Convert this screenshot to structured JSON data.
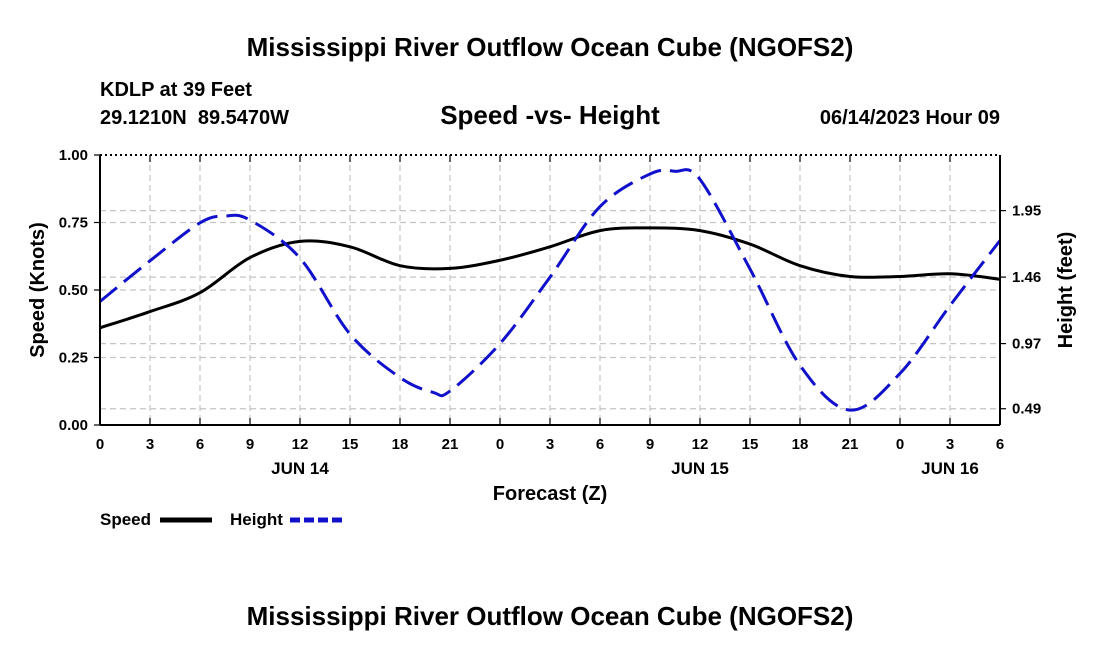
{
  "chart_data": {
    "type": "line",
    "title": "Mississippi River Outflow Ocean Cube (NGOFS2)",
    "subtitle": "Speed -vs- Height",
    "station": "KDLP at 39 Feet",
    "location": "29.1210N  89.5470W",
    "datetime": "06/14/2023 Hour 09",
    "xlabel": "Forecast (Z)",
    "ylabel_left": "Speed (Knots)",
    "ylabel_right": "Height (feet)",
    "x_range": [
      0,
      54
    ],
    "x_ticks": [
      0,
      3,
      6,
      9,
      12,
      15,
      18,
      21,
      24,
      27,
      30,
      33,
      36,
      39,
      42,
      45,
      48,
      51,
      54
    ],
    "x_tick_labels": [
      "0",
      "3",
      "6",
      "9",
      "12",
      "15",
      "18",
      "21",
      "0",
      "3",
      "6",
      "9",
      "12",
      "15",
      "18",
      "21",
      "0",
      "3",
      "6"
    ],
    "date_labels": [
      {
        "x": 12,
        "label": "JUN 14"
      },
      {
        "x": 36,
        "label": "JUN 15"
      },
      {
        "x": 51,
        "label": "JUN 16"
      }
    ],
    "y_left_range": [
      0,
      1.0
    ],
    "y_left_ticks": [
      0,
      0.25,
      0.5,
      0.75,
      1.0
    ],
    "y_left_tick_labels": [
      "0.00",
      "0.25",
      "0.50",
      "0.75",
      "1.00"
    ],
    "y_right_range": [
      0.37,
      2.36
    ],
    "y_right_ticks": [
      0.49,
      0.97,
      1.46,
      1.95
    ],
    "y_right_tick_labels": [
      "0.49",
      "0.97",
      "1.46",
      "1.95"
    ],
    "grid": true,
    "legend_position": "bottom-left",
    "series": [
      {
        "name": "Speed",
        "axis": "left",
        "color": "#000000",
        "style": "solid",
        "x": [
          0,
          3,
          6,
          9,
          12,
          15,
          18,
          21,
          24,
          27,
          30,
          33,
          36,
          39,
          42,
          45,
          48,
          51,
          54
        ],
        "values": [
          0.36,
          0.42,
          0.49,
          0.62,
          0.68,
          0.66,
          0.59,
          0.58,
          0.61,
          0.66,
          0.72,
          0.73,
          0.72,
          0.67,
          0.59,
          0.55,
          0.55,
          0.56,
          0.54
        ]
      },
      {
        "name": "Height",
        "axis": "right",
        "color": "#1111cc",
        "style": "dashed",
        "x": [
          0,
          3,
          6,
          7.5,
          9,
          12,
          15,
          18,
          20,
          21,
          24,
          27,
          30,
          33,
          34.5,
          36,
          39,
          42,
          45,
          45,
          48,
          51,
          54
        ],
        "values": [
          1.28,
          1.58,
          1.86,
          1.91,
          1.88,
          1.6,
          1.04,
          0.72,
          0.61,
          0.62,
          0.97,
          1.46,
          1.98,
          2.22,
          2.24,
          2.18,
          1.52,
          0.81,
          0.48,
          0.48,
          0.75,
          1.25,
          1.73
        ]
      }
    ],
    "footer_title": "Mississippi River Outflow Ocean Cube (NGOFS2)"
  }
}
